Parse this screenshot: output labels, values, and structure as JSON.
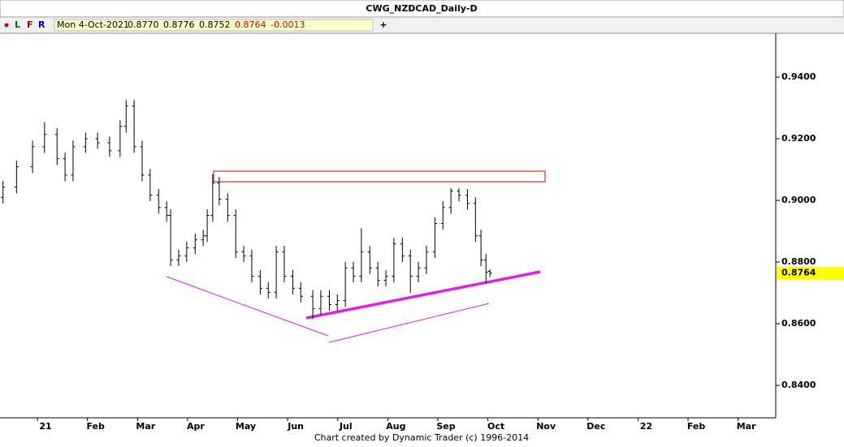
{
  "header": {
    "title": "CWG_NZDCAD_Daily-D",
    "toolbar": [
      "L",
      "F",
      "R"
    ],
    "info": {
      "date": "Mon 4-Oct-2021",
      "open": "0.8770",
      "high": "0.8776",
      "low": "0.8752",
      "close": "0.8764",
      "change": "-0.0013"
    },
    "plus": "+"
  },
  "footer": "Chart created by Dynamic Trader  (c) 1996-2014",
  "chart_data": {
    "type": "ohlc",
    "color": "#000000",
    "x": [
      -0.85,
      -0.58,
      -0.26,
      -0.02,
      0.23,
      0.39,
      0.55,
      0.8,
      1.04,
      1.28,
      1.49,
      1.61,
      1.77,
      1.93,
      2.09,
      2.26,
      2.42,
      2.5,
      2.66,
      2.82,
      2.99,
      3.15,
      3.23,
      3.34,
      3.47,
      3.64,
      3.8,
      3.96,
      4.12,
      4.29,
      4.45,
      4.61,
      4.77,
      4.94,
      5.1,
      5.34,
      5.5,
      5.67,
      5.83,
      5.99,
      6.15,
      6.31,
      6.48,
      6.64,
      6.8,
      6.96,
      7.13,
      7.29,
      7.45,
      7.61,
      7.78,
      7.94,
      8.1,
      8.26,
      8.43,
      8.59,
      8.7,
      8.8,
      8.88
    ],
    "open": [
      0.901,
      0.9043,
      0.9109,
      0.9174,
      0.9214,
      0.9135,
      0.9082,
      0.9174,
      0.92,
      0.9187,
      0.9161,
      0.924,
      0.9306,
      0.9174,
      0.9082,
      0.9017,
      0.8977,
      0.8951,
      0.8807,
      0.882,
      0.8846,
      0.8872,
      0.8885,
      0.8951,
      0.9056,
      0.9004,
      0.8951,
      0.8833,
      0.882,
      0.8754,
      0.8715,
      0.8702,
      0.8833,
      0.8754,
      0.8715,
      0.8689,
      0.8649,
      0.8689,
      0.8662,
      0.8675,
      0.8781,
      0.8754,
      0.8833,
      0.8781,
      0.8741,
      0.8754,
      0.8859,
      0.882,
      0.8754,
      0.8781,
      0.8833,
      0.8925,
      0.8977,
      0.903,
      0.9017,
      0.899,
      0.8885,
      0.8807,
      0.877
    ],
    "high": [
      0.9063,
      0.9129,
      0.9194,
      0.9254,
      0.9234,
      0.9155,
      0.9194,
      0.922,
      0.922,
      0.9207,
      0.926,
      0.9326,
      0.9326,
      0.9194,
      0.9102,
      0.9037,
      0.8997,
      0.8971,
      0.884,
      0.8866,
      0.8892,
      0.8905,
      0.8971,
      0.9085,
      0.9076,
      0.9024,
      0.8971,
      0.8853,
      0.884,
      0.8774,
      0.8735,
      0.8853,
      0.8853,
      0.8774,
      0.8735,
      0.8709,
      0.8709,
      0.8709,
      0.8695,
      0.8801,
      0.8801,
      0.891,
      0.8853,
      0.8801,
      0.8774,
      0.8879,
      0.8879,
      0.884,
      0.8801,
      0.8853,
      0.8945,
      0.8997,
      0.904,
      0.904,
      0.9037,
      0.901,
      0.8905,
      0.8827,
      0.8776
    ],
    "low": [
      0.899,
      0.9023,
      0.9089,
      0.9154,
      0.9115,
      0.9062,
      0.9062,
      0.9154,
      0.9167,
      0.9141,
      0.9141,
      0.922,
      0.9154,
      0.9062,
      0.8997,
      0.8957,
      0.8931,
      0.8787,
      0.8787,
      0.88,
      0.8826,
      0.8852,
      0.8865,
      0.8931,
      0.8984,
      0.8931,
      0.8813,
      0.88,
      0.8734,
      0.8695,
      0.8682,
      0.8682,
      0.8734,
      0.8695,
      0.8669,
      0.8615,
      0.8629,
      0.8642,
      0.8642,
      0.8655,
      0.8734,
      0.8734,
      0.8761,
      0.8721,
      0.8721,
      0.8734,
      0.88,
      0.87,
      0.8734,
      0.8761,
      0.8813,
      0.8905,
      0.8957,
      0.8997,
      0.897,
      0.8865,
      0.8787,
      0.873,
      0.8752
    ],
    "close": [
      0.9043,
      0.9109,
      0.9174,
      0.9214,
      0.9135,
      0.9082,
      0.9174,
      0.92,
      0.9187,
      0.9161,
      0.924,
      0.9306,
      0.9174,
      0.9082,
      0.9017,
      0.8977,
      0.8951,
      0.8807,
      0.882,
      0.8846,
      0.8872,
      0.8885,
      0.8951,
      0.9056,
      0.9004,
      0.8951,
      0.8833,
      0.882,
      0.8754,
      0.8715,
      0.8702,
      0.8833,
      0.8754,
      0.8715,
      0.8689,
      0.8649,
      0.8689,
      0.8662,
      0.8675,
      0.8781,
      0.8754,
      0.8833,
      0.8781,
      0.8741,
      0.8754,
      0.8859,
      0.882,
      0.8754,
      0.8781,
      0.8833,
      0.8925,
      0.8977,
      0.903,
      0.9017,
      0.899,
      0.8885,
      0.8807,
      0.8767,
      0.8764
    ],
    "xlim": [
      -0.91,
      14.59
    ],
    "xticks": [
      {
        "value": 0,
        "label": "21"
      },
      {
        "value": 1,
        "label": "Feb"
      },
      {
        "value": 2,
        "label": "Mar"
      },
      {
        "value": 3,
        "label": "Apr"
      },
      {
        "value": 4,
        "label": "May"
      },
      {
        "value": 5,
        "label": "Jun"
      },
      {
        "value": 6,
        "label": "Jul"
      },
      {
        "value": 7,
        "label": "Aug"
      },
      {
        "value": 8,
        "label": "Sep"
      },
      {
        "value": 9,
        "label": "Oct"
      },
      {
        "value": 10,
        "label": "Nov"
      },
      {
        "value": 11,
        "label": "Dec"
      },
      {
        "value": 12,
        "label": "22"
      },
      {
        "value": 13,
        "label": "Feb"
      },
      {
        "value": 14,
        "label": "Mar"
      }
    ],
    "ylim": [
      0.8295,
      0.9542
    ],
    "yticks": [
      {
        "value": 0.84,
        "label": "0.8400"
      },
      {
        "value": 0.86,
        "label": "0.8600"
      },
      {
        "value": 0.88,
        "label": "0.8800"
      },
      {
        "value": 0.9,
        "label": "0.9000"
      },
      {
        "value": 0.92,
        "label": "0.9200"
      },
      {
        "value": 0.94,
        "label": "0.9400"
      }
    ],
    "last_price": {
      "value": 0.8764,
      "label": "0.8764"
    }
  }
}
